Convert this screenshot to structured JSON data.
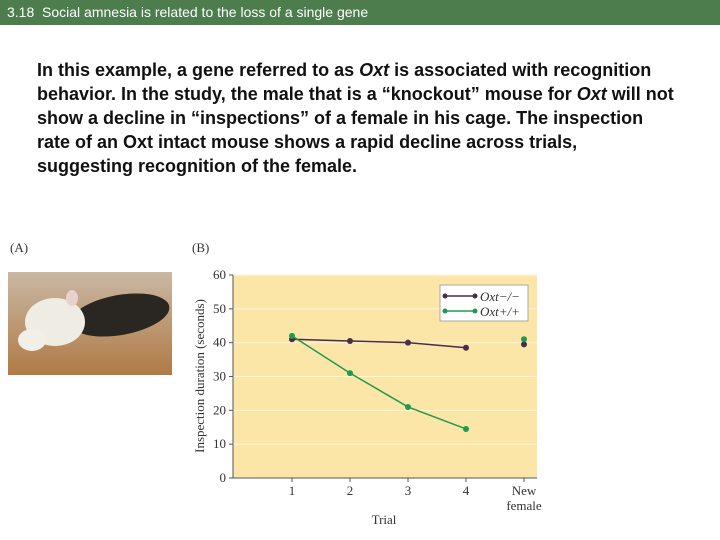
{
  "header": {
    "title": "3.18  Social amnesia is related to the loss of a single gene"
  },
  "body": [
    {
      "text": "In this example, a gene referred to as ",
      "italic": false
    },
    {
      "text": "Oxt",
      "italic": true
    },
    {
      "text": " is associated with recognition behavior.  In the study, the male that is a “knockout” mouse for ",
      "italic": false
    },
    {
      "text": "Oxt",
      "italic": true
    },
    {
      "text": " will not show a decline in “inspections” of a female in his cage.   The inspection rate of an Oxt intact mouse shows a rapid decline across trials, suggesting recognition of the female.",
      "italic": false
    }
  ],
  "panels": [
    "(A)",
    "(B)"
  ],
  "chart_data": {
    "type": "line",
    "x_label": "Trial",
    "y_label": "Inspection duration (seconds)",
    "categories": [
      "1",
      "2",
      "3",
      "4",
      "New female"
    ],
    "series": [
      {
        "name": "Oxt−/−",
        "color": "#4b2a4d",
        "values": [
          41,
          40.5,
          40,
          38.5,
          39.5
        ]
      },
      {
        "name": "Oxt+/+",
        "color": "#1f9a4e",
        "values": [
          42,
          31,
          21,
          14.5,
          41
        ]
      }
    ],
    "ylim": [
      0,
      60
    ],
    "yticks": [
      0,
      10,
      20,
      30,
      40,
      50,
      60
    ],
    "grid": true,
    "legend": "upper right",
    "background": "#fbe6a8"
  }
}
